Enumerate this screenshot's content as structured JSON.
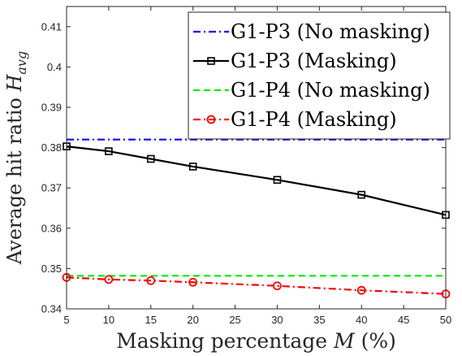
{
  "chart_data": {
    "type": "line",
    "xlabel": "Masking percentage M (%)",
    "xlabel_parts": {
      "prefix": "Masking percentage ",
      "var": "M",
      "suffix": " (%)"
    },
    "ylabel": "Average hit ratio H_avg",
    "ylabel_parts": {
      "prefix": "Average hit ratio ",
      "var": "H",
      "sub": "avg"
    },
    "xlim": [
      5,
      50
    ],
    "ylim": [
      0.34,
      0.415
    ],
    "xticks": [
      5,
      10,
      15,
      20,
      25,
      30,
      35,
      40,
      45,
      50
    ],
    "yticks": [
      0.34,
      0.35,
      0.36,
      0.37,
      0.38,
      0.39,
      0.4,
      0.41
    ],
    "ytick_labels": [
      "0.34",
      "0.35",
      "0.36",
      "0.37",
      "0.38",
      "0.39",
      "0.4",
      "0.41"
    ],
    "grid": false,
    "legend_position": "top-right",
    "series": [
      {
        "name": "G1-P3 (No masking)",
        "color": "#0000ff",
        "dash": "dashdot",
        "marker": "none",
        "x": [
          5,
          50
        ],
        "y": [
          0.382,
          0.382
        ]
      },
      {
        "name": "G1-P3 (Masking)",
        "color": "#000000",
        "dash": "solid",
        "marker": "square",
        "x": [
          5,
          10,
          15,
          20,
          30,
          40,
          50
        ],
        "y": [
          0.3803,
          0.3791,
          0.3772,
          0.3753,
          0.372,
          0.3683,
          0.3633
        ]
      },
      {
        "name": "G1-P4 (No masking)",
        "color": "#00ee00",
        "dash": "dashed",
        "marker": "none",
        "x": [
          5,
          50
        ],
        "y": [
          0.3482,
          0.3482
        ]
      },
      {
        "name": "G1-P4 (Masking)",
        "color": "#ff0000",
        "dash": "dashdot",
        "marker": "circle",
        "x": [
          5,
          10,
          15,
          20,
          30,
          40,
          50
        ],
        "y": [
          0.3478,
          0.3473,
          0.347,
          0.3466,
          0.3457,
          0.3446,
          0.3437
        ]
      }
    ]
  }
}
